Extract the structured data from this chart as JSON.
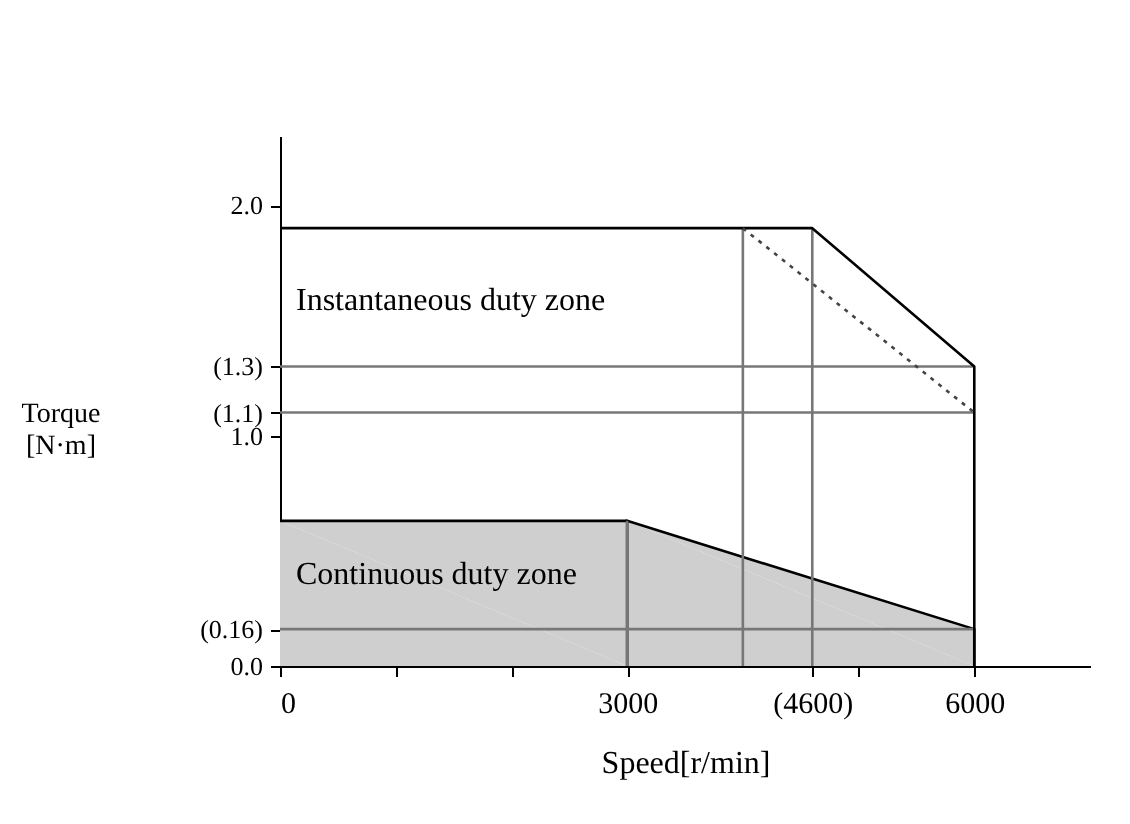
{
  "chart_data": {
    "type": "line",
    "xlabel": "Speed[r/min]",
    "ylabel": "Torque [N·m]",
    "xlim": [
      0,
      7000
    ],
    "ylim": [
      0,
      2.3
    ],
    "xticks": [
      0,
      {
        "value": 1000,
        "label": null
      },
      {
        "value": 2000,
        "label": null
      },
      3000,
      {
        "value": 4600,
        "label": "(4600)"
      },
      {
        "value": 5000,
        "label": null
      },
      6000
    ],
    "yticks": [
      {
        "value": 0,
        "label": "0.0"
      },
      {
        "value": 0.16,
        "label": "(0.16)"
      },
      {
        "value": 1,
        "label": "1.0"
      },
      {
        "value": 1.1,
        "label": "(1.1)"
      },
      {
        "value": 1.3,
        "label": "(1.3)"
      },
      {
        "value": 2,
        "label": "2.0"
      }
    ],
    "grid": false,
    "line_style": "solid",
    "marker": "none",
    "series": [
      {
        "type": "area",
        "color": "#cfcfcf",
        "x": [
          0,
          3000,
          6000,
          6000
        ],
        "values": [
          0.63,
          0.63,
          0.16,
          0
        ]
      },
      {
        "color": "#777777",
        "x": [
          3000,
          3000
        ],
        "values": [
          0,
          0.63
        ]
      },
      {
        "color": "#777777",
        "x": [
          4000,
          4000
        ],
        "values": [
          0,
          1.9
        ]
      },
      {
        "color": "#777777",
        "x": [
          4600,
          4600
        ],
        "values": [
          0,
          1.9
        ]
      },
      {
        "color": "#777777",
        "x": [
          0,
          6000
        ],
        "values": [
          1.3,
          1.3
        ]
      },
      {
        "color": "#777777",
        "x": [
          0,
          6000
        ],
        "values": [
          1.1,
          1.1
        ]
      },
      {
        "color": "#777777",
        "x": [
          0,
          6000
        ],
        "values": [
          0.16,
          0.16
        ]
      },
      {
        "color": "#000000",
        "x": [
          0,
          4600,
          6000,
          6000
        ],
        "values": [
          1.9,
          1.9,
          1.3,
          0
        ]
      },
      {
        "color": "#444444",
        "line_style": "dotted",
        "x": [
          4000,
          6000
        ],
        "values": [
          1.9,
          1.1
        ]
      }
    ],
    "annotations": [
      "Instantaneous duty zone",
      "Continuous duty zone"
    ]
  }
}
